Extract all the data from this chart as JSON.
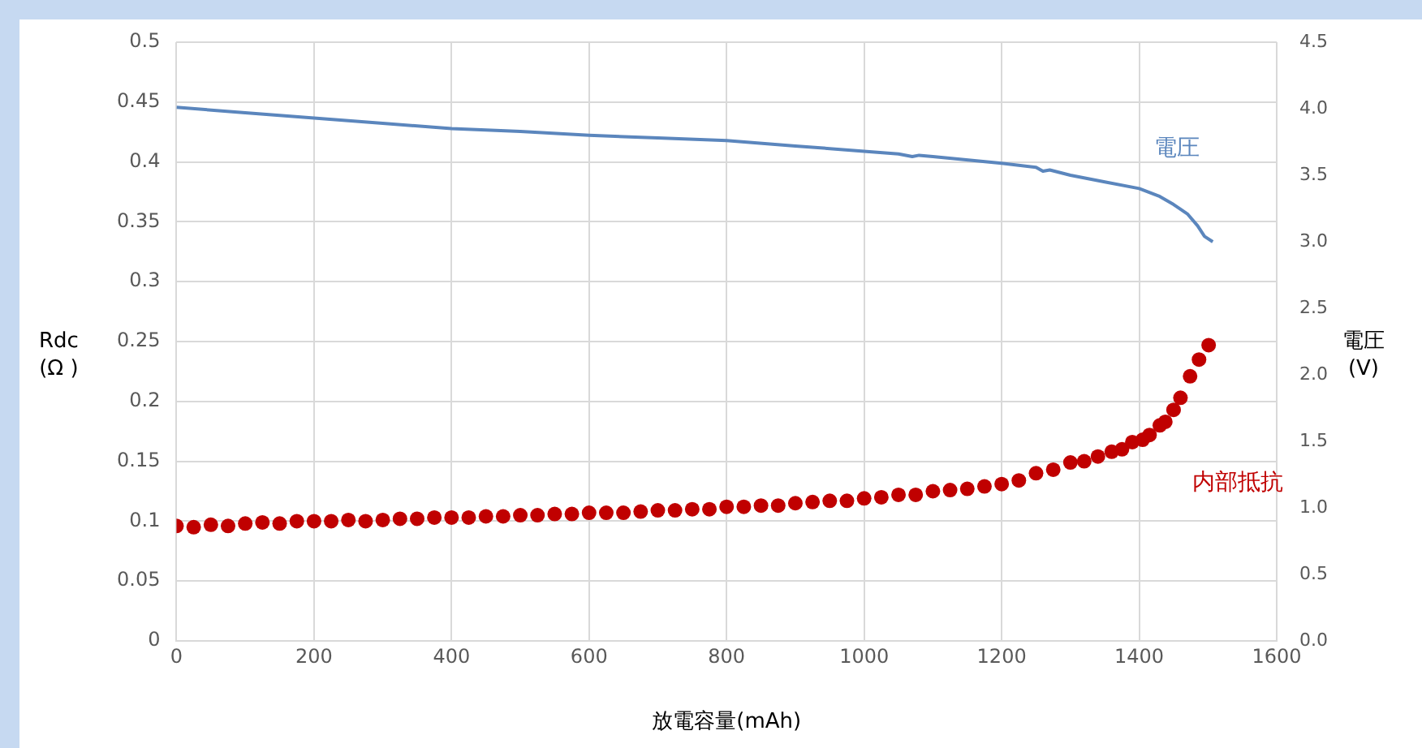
{
  "chart_data": {
    "type": "scatter",
    "xlabel": "放電容量(mAh)",
    "ylabel": "Rdc\n(Ω )",
    "y2label": "電圧(V)",
    "xlim": [
      0,
      1600
    ],
    "xticks": [
      0,
      200,
      400,
      600,
      800,
      1000,
      1200,
      1400,
      1600
    ],
    "ylim": [
      0,
      0.5
    ],
    "yticks": [
      0,
      0.05,
      0.1,
      0.15,
      0.2,
      0.25,
      0.3,
      0.35,
      0.4,
      0.45,
      0.5
    ],
    "y2lim": [
      0,
      4.5
    ],
    "y2ticks": [
      {
        "value": 0,
        "label": "0.0"
      },
      {
        "value": 0.5,
        "label": "0.5"
      },
      {
        "value": 1,
        "label": "1.0"
      },
      {
        "value": 1.5,
        "label": "1.5"
      },
      {
        "value": 2,
        "label": "2.0"
      },
      {
        "value": 2.5,
        "label": "2.5"
      },
      {
        "value": 3,
        "label": "3.0"
      },
      {
        "value": 3.5,
        "label": "3.5"
      },
      {
        "value": 4,
        "label": "4.0"
      },
      {
        "value": 4.5,
        "label": "4.5"
      }
    ],
    "grid": true,
    "legend": false,
    "series": [
      {
        "name": "電圧",
        "type": "line",
        "axis": "y2",
        "marker": "none",
        "color": "#5b86bd",
        "x": [
          0,
          100,
          200,
          300,
          400,
          500,
          600,
          700,
          800,
          900,
          1000,
          1050,
          1070,
          1080,
          1100,
          1200,
          1250,
          1260,
          1270,
          1300,
          1350,
          1400,
          1430,
          1450,
          1470,
          1485,
          1495,
          1507
        ],
        "values": [
          4.01,
          3.97,
          3.93,
          3.89,
          3.85,
          3.83,
          3.8,
          3.78,
          3.76,
          3.72,
          3.68,
          3.66,
          3.64,
          3.65,
          3.64,
          3.59,
          3.56,
          3.53,
          3.54,
          3.5,
          3.45,
          3.4,
          3.34,
          3.28,
          3.21,
          3.12,
          3.04,
          3.0
        ]
      },
      {
        "name": "内部抵抗",
        "type": "scatter",
        "marker": "circle",
        "color": "#c00000",
        "x": [
          0,
          25,
          50,
          75,
          100,
          125,
          150,
          175,
          200,
          225,
          250,
          275,
          300,
          325,
          350,
          375,
          400,
          425,
          450,
          475,
          500,
          525,
          550,
          575,
          600,
          625,
          650,
          675,
          700,
          725,
          750,
          775,
          800,
          825,
          850,
          875,
          900,
          925,
          950,
          975,
          1000,
          1025,
          1050,
          1075,
          1100,
          1125,
          1150,
          1175,
          1200,
          1225,
          1250,
          1275,
          1300,
          1320,
          1340,
          1360,
          1375,
          1390,
          1405,
          1415,
          1430,
          1438,
          1450,
          1460,
          1474,
          1487,
          1501
        ],
        "values": [
          0.096,
          0.095,
          0.097,
          0.096,
          0.098,
          0.099,
          0.098,
          0.1,
          0.1,
          0.1,
          0.101,
          0.1,
          0.101,
          0.102,
          0.102,
          0.103,
          0.103,
          0.103,
          0.104,
          0.104,
          0.105,
          0.105,
          0.106,
          0.106,
          0.107,
          0.107,
          0.107,
          0.108,
          0.109,
          0.109,
          0.11,
          0.11,
          0.112,
          0.112,
          0.113,
          0.113,
          0.115,
          0.116,
          0.117,
          0.117,
          0.119,
          0.12,
          0.122,
          0.122,
          0.125,
          0.126,
          0.127,
          0.129,
          0.131,
          0.134,
          0.14,
          0.143,
          0.149,
          0.15,
          0.154,
          0.158,
          0.16,
          0.166,
          0.168,
          0.172,
          0.18,
          0.183,
          0.193,
          0.203,
          0.221,
          0.235,
          0.247
        ]
      }
    ]
  }
}
